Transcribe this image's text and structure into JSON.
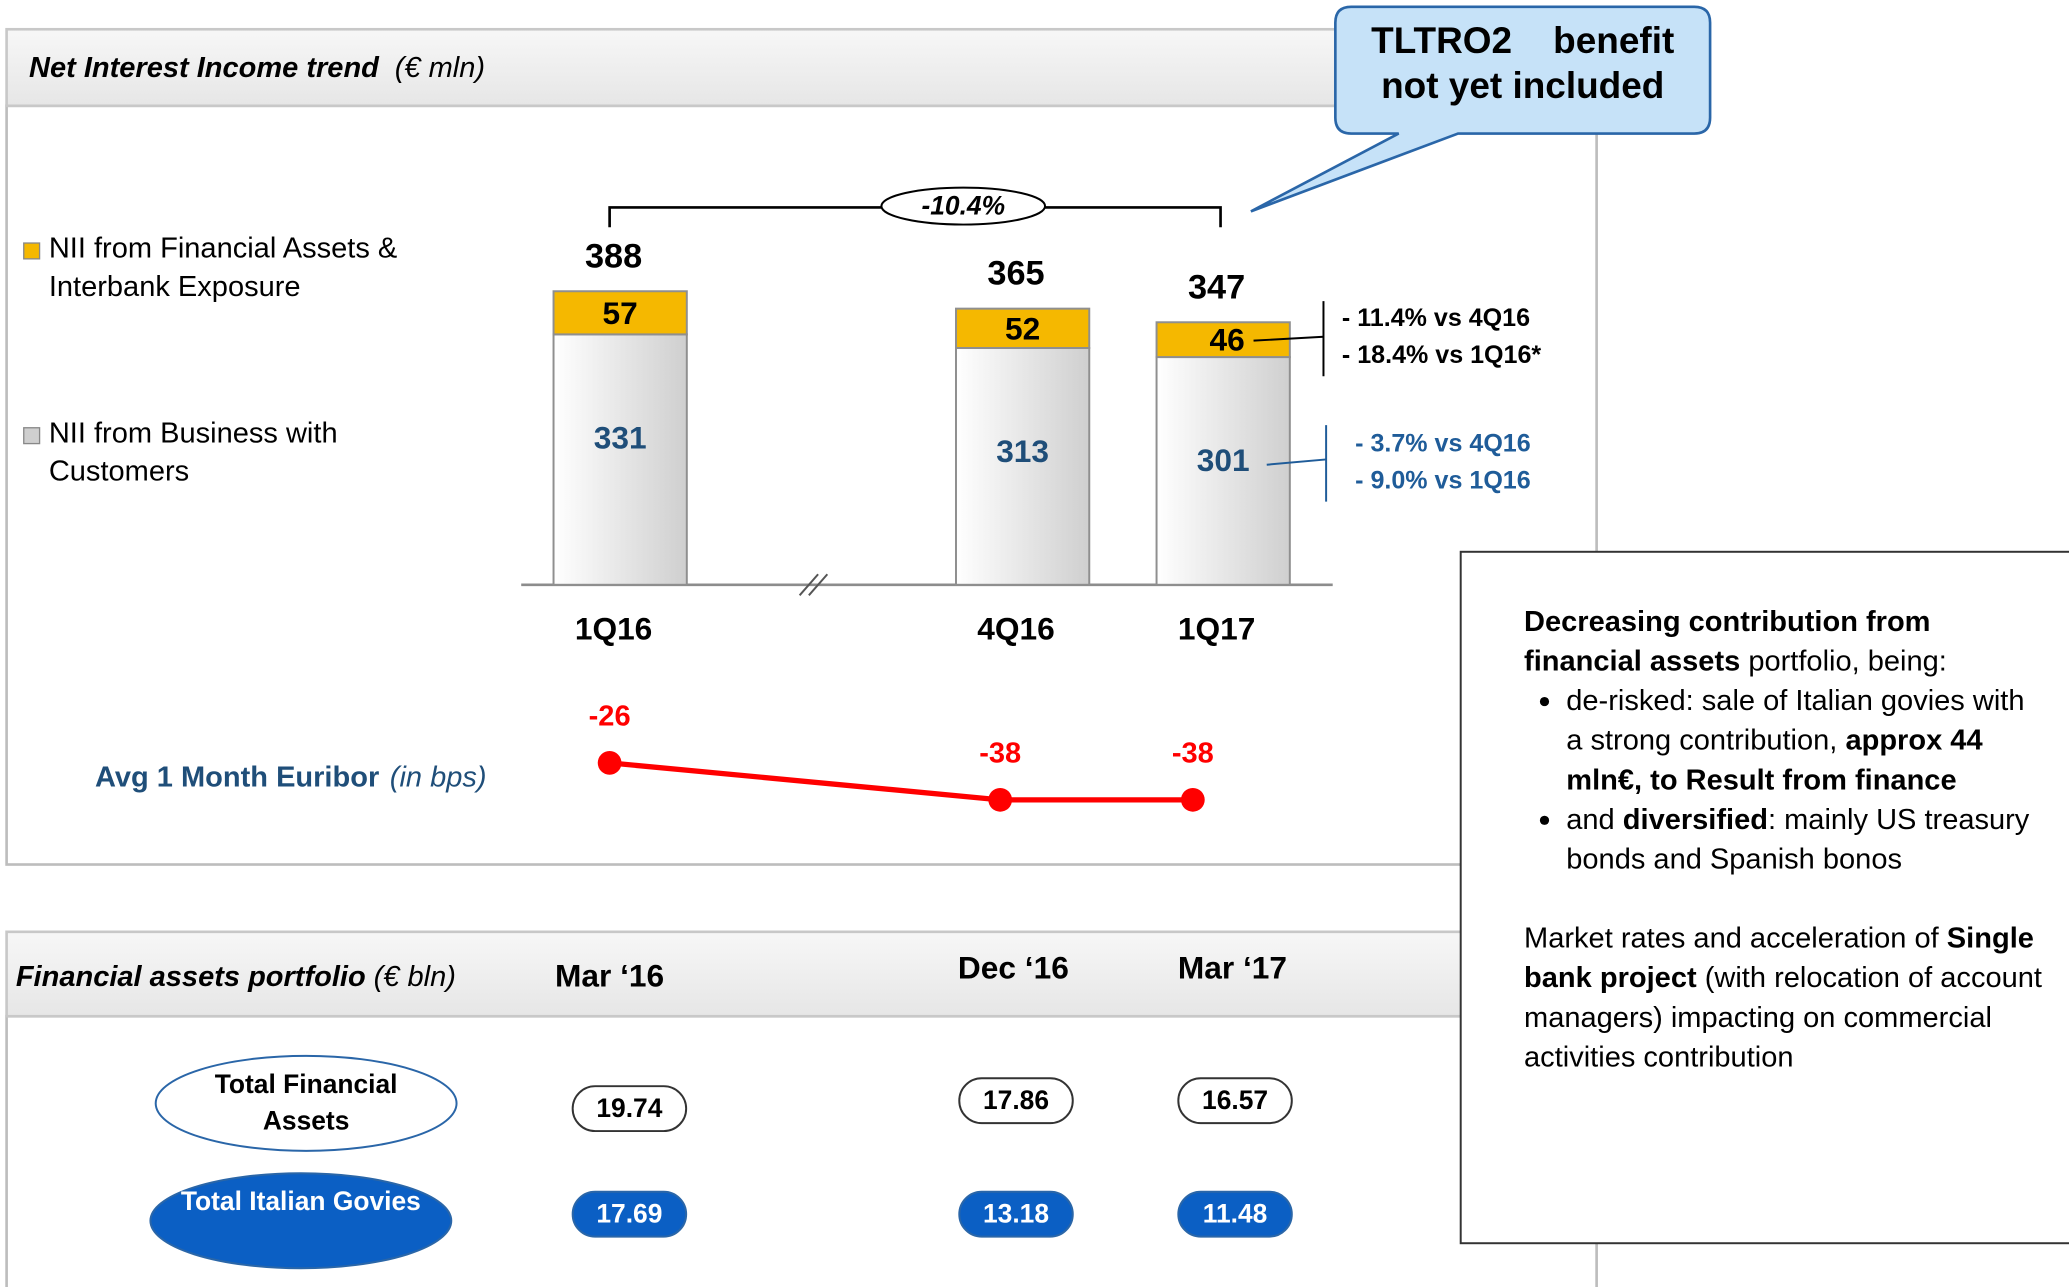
{
  "nii_panel": {
    "title": "Net Interest Income trend",
    "unit": "(€ mln)"
  },
  "callout": "TLTRO2    benefit not yet included",
  "chart_data": [
    {
      "type": "bar",
      "stacked": true,
      "categories": [
        "1Q16",
        "4Q16",
        "1Q17"
      ],
      "series": [
        {
          "name": "NII from Business with Customers",
          "color": "#cfcfcf",
          "label_color": "#1f4e79",
          "values": [
            331,
            313,
            301
          ]
        },
        {
          "name": "NII from Financial Assets & Interbank Exposure",
          "color": "#f5b800",
          "label_color": "#000000",
          "values": [
            57,
            52,
            46
          ]
        }
      ],
      "totals": [
        388,
        365,
        347
      ],
      "ylim": [
        0,
        600
      ],
      "change_total": "-10.4%",
      "annotations": [
        {
          "lines": [
            "- 11.4% vs 4Q16",
            "- 18.4% vs 1Q16*"
          ],
          "color": "#000000"
        },
        {
          "lines": [
            "- 3.7% vs 4Q16",
            "- 9.0% vs 1Q16"
          ],
          "color": "#1f5c99"
        }
      ]
    },
    {
      "type": "line",
      "title": "Avg 1 Month Euribor",
      "subtitle": "(in bps)",
      "values": [
        -26,
        -38,
        -38
      ],
      "color": "#ff0000",
      "ylim": [
        -45,
        -20
      ]
    }
  ],
  "portfolio": {
    "title": "Financial assets portfolio",
    "unit": "(€ bln)",
    "columns": [
      "Mar ‘16",
      "Dec ‘16",
      "Mar ‘17"
    ],
    "rows": [
      {
        "label": "Total Financial Assets",
        "values": [
          "19.74",
          "17.86",
          "16.57"
        ]
      },
      {
        "label": "Total Italian Govies",
        "values": [
          "17.69",
          "13.18",
          "11.48"
        ]
      }
    ]
  },
  "note": {
    "intro": [
      {
        "text": "Decreasing contribution from financial assets",
        "bold": true
      },
      {
        "text": " portfolio, being:"
      }
    ],
    "bullets": [
      [
        {
          "text": "de-risked: sale of Italian govies with a strong contribution, "
        },
        {
          "text": "approx 44 mln€, to Result from finance",
          "bold": true
        }
      ],
      [
        {
          "text": "and "
        },
        {
          "text": "diversified",
          "bold": true
        },
        {
          "text": ": mainly US treasury bonds and Spanish bonos"
        }
      ]
    ],
    "outro": [
      {
        "text": "Market rates and acceleration of "
      },
      {
        "text": "Single bank project",
        "bold": true
      },
      {
        "text": " (with relocation of account managers) impacting on commercial activities contribution"
      }
    ]
  }
}
